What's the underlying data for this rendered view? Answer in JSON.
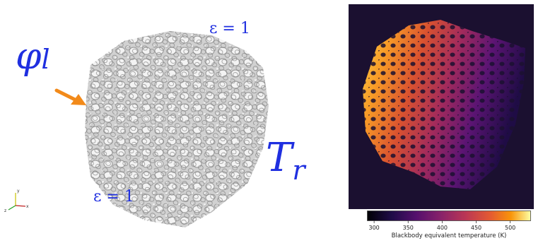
{
  "left": {
    "phi_label_main": "φ",
    "phi_label_sub": "l",
    "eps_top": "ε = 1",
    "eps_bottom": "ε = 1",
    "t_label_main": "T",
    "t_label_sub": "r",
    "arrow_color": "#f28a1a",
    "label_color": "#1f2fe0",
    "axes": {
      "y": "y",
      "x": "x",
      "z": "z"
    }
  },
  "right": {
    "colorbar": {
      "label": "Blackbody equivalent temperature (K)",
      "ticks": [
        "300",
        "350",
        "400",
        "450",
        "500"
      ],
      "tick_values": [
        300,
        350,
        400,
        450,
        500
      ],
      "range": [
        290,
        530
      ],
      "colormap": "inferno"
    }
  }
}
